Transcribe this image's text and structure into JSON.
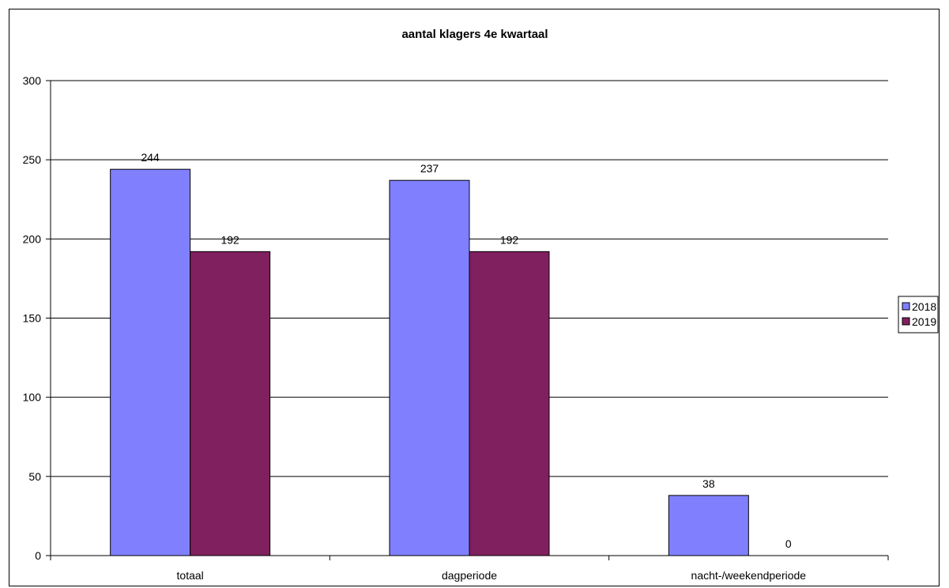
{
  "chart_data": {
    "type": "bar",
    "title": "aantal klagers 4e kwartaal",
    "xlabel": "",
    "ylabel": "",
    "categories": [
      "totaal",
      "dagperiode",
      "nacht-/weekendperiode"
    ],
    "series": [
      {
        "name": "2018",
        "values": [
          244,
          237,
          38
        ],
        "color": "#8080FF"
      },
      {
        "name": "2019",
        "values": [
          192,
          192,
          0
        ],
        "color": "#80205E"
      }
    ],
    "ylim": [
      0,
      300
    ],
    "yticks": [
      0,
      50,
      100,
      150,
      200,
      250,
      300
    ],
    "grid": true,
    "legend_position": "right",
    "data_labels": true
  }
}
